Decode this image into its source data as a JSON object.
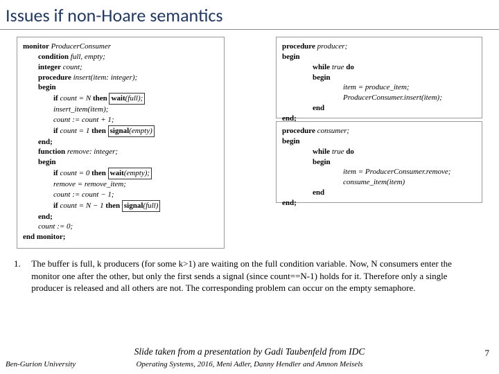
{
  "title": "Issues if non-Hoare semantics",
  "monitor": {
    "l1a": "monitor",
    "l1b": "ProducerConsumer",
    "l2a": "condition",
    "l2b": "full, empty;",
    "l3a": "integer",
    "l3b": "count;",
    "l4a": "procedure",
    "l4b": "insert(item: integer);",
    "l5": "begin",
    "l6a": "if",
    "l6b": "count = N",
    "l6c": "then",
    "l6d": "wait",
    "l6e": "(full);",
    "l7": "insert_item(item);",
    "l8": "count := count + 1;",
    "l9a": "if",
    "l9b": "count = 1",
    "l9c": "then",
    "l9d": "signal",
    "l9e": "(empty)",
    "l10": "end;",
    "l11a": "function",
    "l11b": "remove: integer;",
    "l12": "begin",
    "l13a": "if",
    "l13b": "count = 0",
    "l13c": "then",
    "l13d": "wait",
    "l13e": "(empty);",
    "l14": "remove = remove_item;",
    "l15": "count := count − 1;",
    "l16a": "if",
    "l16b": "count = N − 1",
    "l16c": "then",
    "l16d": "signal",
    "l16e": "(full)",
    "l17": "end;",
    "l18": "count := 0;",
    "l19": "end monitor;"
  },
  "producer": {
    "l1a": "procedure",
    "l1b": "producer;",
    "l2": "begin",
    "l3a": "while",
    "l3b": "true",
    "l3c": "do",
    "l4": "begin",
    "l5": "item = produce_item;",
    "l6": "ProducerConsumer.insert(item);",
    "l7": "end",
    "l8": "end;"
  },
  "consumer": {
    "l1a": "procedure",
    "l1b": "consumer;",
    "l2": "begin",
    "l3a": "while",
    "l3b": "true",
    "l3c": "do",
    "l4": "begin",
    "l5": "item = ProducerConsumer.remove;",
    "l6": "consume_item(item)",
    "l7": "end",
    "l8": "end;"
  },
  "note": {
    "num": "1.",
    "text": "The buffer is full, k producers (for some k>1) are waiting on the full condition variable. Now, N consumers enter the monitor one after the other, but only the first sends a signal (since count==N-1) holds for it. Therefore only a single producer is released and all others are not. The corresponding problem can occur on the empty semaphore."
  },
  "footer": {
    "credit": "Slide taken from a presentation by Gadi Taubenfeld from IDC",
    "course": "Operating Systems, 2016, Meni Adler, Danny Hendler and Amnon Meisels",
    "bgu": "Ben-Gurion University",
    "page": "7"
  }
}
